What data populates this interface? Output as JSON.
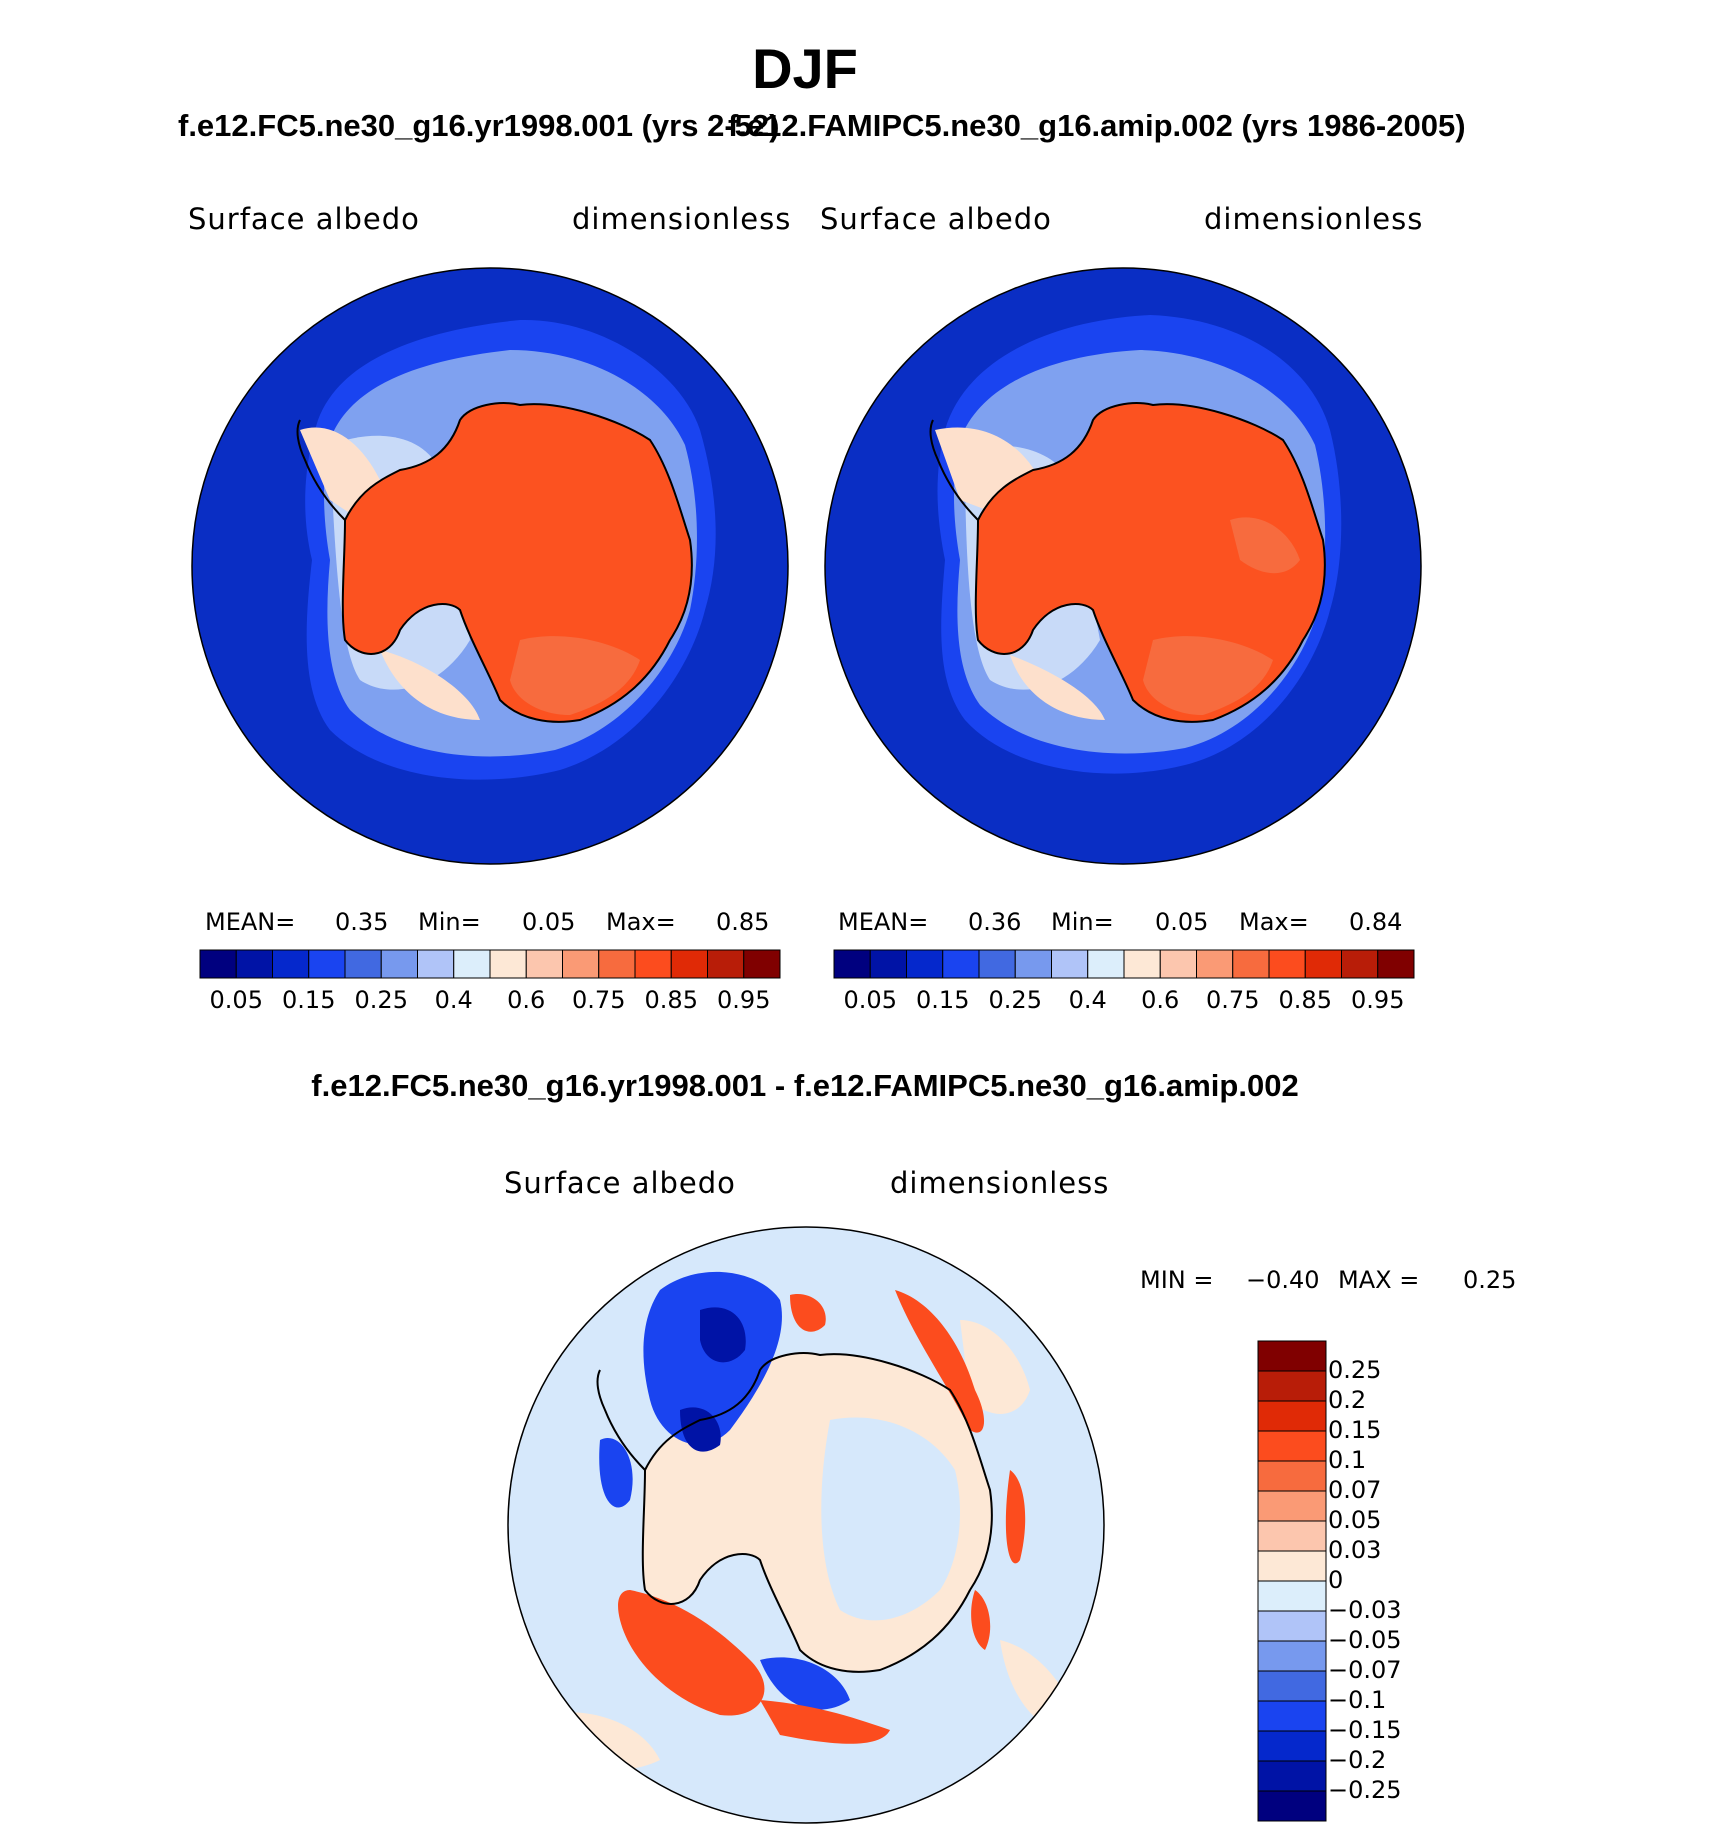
{
  "figure": {
    "title": "DJF",
    "case_title_1": "f.e12.FC5.ne30_g16.yr1998.001 (yrs 2-52)",
    "case_title_2": "f.e12.FAMIPC5.ne30_g16.amip.002 (yrs 1986-2005)",
    "diff_title": "f.e12.FC5.ne30_g16.yr1998.001 - f.e12.FAMIPC5.ne30_g16.amip.002"
  },
  "panels": [
    {
      "variable": "Surface albedo",
      "units": "dimensionless",
      "mean_label": "MEAN=",
      "mean_value": "0.35",
      "min_label": "Min=",
      "min_value": "0.05",
      "max_label": "Max=",
      "max_value": "0.85"
    },
    {
      "variable": "Surface albedo",
      "units": "dimensionless",
      "mean_label": "MEAN=",
      "mean_value": "0.36",
      "min_label": "Min=",
      "min_value": "0.05",
      "max_label": "Max=",
      "max_value": "0.84"
    }
  ],
  "colorbar_main": {
    "colors": [
      "#00007f",
      "#0013a6",
      "#0528cc",
      "#1a44f0",
      "#4169e1",
      "#7799ee",
      "#b0c4f8",
      "#dceefb",
      "#fde8d6",
      "#fcc6ae",
      "#fa9a75",
      "#f76b3e",
      "#fc4c1e",
      "#e02a06",
      "#b81d08",
      "#800000"
    ],
    "tick_labels": [
      "0.05",
      "0.15",
      "0.25",
      "0.4",
      "0.6",
      "0.75",
      "0.85",
      "0.95"
    ]
  },
  "diff_panel": {
    "variable": "Surface albedo",
    "units": "dimensionless",
    "min_label": "MIN =",
    "min_value": "−0.40",
    "max_label": "MAX =",
    "max_value": "0.25"
  },
  "colorbar_diff": {
    "colors": [
      "#800000",
      "#b81d08",
      "#e02a06",
      "#fc4c1e",
      "#f76b3e",
      "#fa9a75",
      "#fcc6ae",
      "#fde8d6",
      "#dceefb",
      "#b0c4f8",
      "#7799ee",
      "#4169e1",
      "#1a44f0",
      "#0528cc",
      "#0013a6",
      "#00007f"
    ],
    "tick_labels": [
      "0.25",
      "0.2",
      "0.15",
      "0.1",
      "0.07",
      "0.05",
      "0.03",
      "0",
      "−0.03",
      "−0.05",
      "−0.07",
      "−0.1",
      "−0.15",
      "−0.2",
      "−0.25"
    ]
  },
  "map_colors": {
    "ocean": "#0a2ec4",
    "ice_edge": "#1a44f0",
    "sea_ice": "#7fa1f0",
    "marginal": "#c8daf8",
    "shelf": "#fde0cc",
    "continent": "#fc5220",
    "continent_dark": "#f76b3e",
    "diff_bg": "#d6e8fb",
    "diff_pos": "#fde8d6"
  }
}
